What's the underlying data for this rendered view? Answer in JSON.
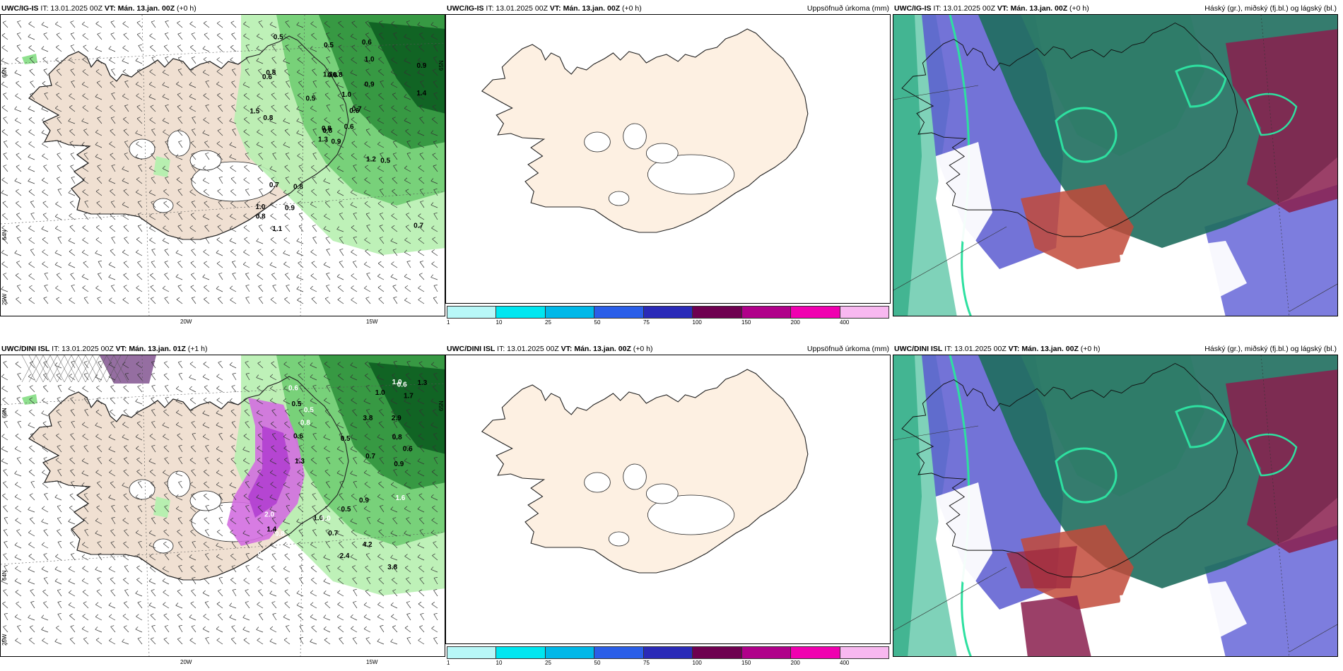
{
  "panels": [
    {
      "model": "UWC/IG-IS",
      "it_label": "IT:",
      "it": "13.01.2025 00Z",
      "vt_label": "VT:",
      "vt": "Mán. 13.jan. 00Z",
      "lead": "(+0 h)",
      "right": ""
    },
    {
      "model": "UWC/IG-IS",
      "it_label": "IT:",
      "it": "13.01.2025 00Z",
      "vt_label": "VT:",
      "vt": "Mán. 13.jan. 00Z",
      "lead": "(+0 h)",
      "right": "Uppsöfnuð úrkoma (mm)"
    },
    {
      "model": "UWC/IG-IS",
      "it_label": "IT:",
      "it": "13.01.2025 00Z",
      "vt_label": "VT:",
      "vt": "Mán. 13.jan. 00Z",
      "lead": "(+0 h)",
      "right": "Háský (gr.), miðský (fj.bl.) og lágský (bl.)"
    },
    {
      "model": "UWC/DINI ISL",
      "it_label": "IT:",
      "it": "13.01.2025 00Z",
      "vt_label": "VT:",
      "vt": "Mán. 13.jan. 01Z",
      "lead": "(+1 h)",
      "right": ""
    },
    {
      "model": "UWC/DINI ISL",
      "it_label": "IT:",
      "it": "13.01.2025 00Z",
      "vt_label": "VT:",
      "vt": "Mán. 13.jan. 00Z",
      "lead": "(+0 h)",
      "right": "Uppsöfnuð úrkoma (mm)"
    },
    {
      "model": "UWC/DINI ISL",
      "it_label": "IT:",
      "it": "13.01.2025 00Z",
      "vt_label": "VT:",
      "vt": "Mán. 13.jan. 00Z",
      "lead": "(+0 h)",
      "right": "Háský (gr.), miðský (fj.bl.) og lágský (bl.)"
    }
  ],
  "axis_labels": {
    "lon_20w": "20W",
    "lon_15w": "15W",
    "lat_66n": "66N",
    "lat_64n": "64N",
    "lat_65n": "65N",
    "lat_25w": "25W"
  },
  "colorbar": {
    "labels": [
      "1",
      "10",
      "25",
      "50",
      "75",
      "100",
      "150",
      "200",
      "400"
    ],
    "colors": [
      "#b8f8f8",
      "#00e6f0",
      "#00b8e8",
      "#2a5ee8",
      "#2a2ab8",
      "#6e0050",
      "#b0008a",
      "#f000b0",
      "#f8b8f0"
    ]
  },
  "precip_labels_top": [
    "0.9",
    "0.6",
    "0.8",
    "1.0",
    "0.6",
    "0.8",
    "0.6",
    "0.8",
    "1.0",
    "0.6",
    "0.5",
    "0.7",
    "0.8",
    "0.9",
    "1.3",
    "0.9",
    "1.1",
    "1.3",
    "1.0",
    "0.7",
    "0.5",
    "0.8",
    "0.9",
    "0.6",
    "0.7",
    "0.5",
    "0.8",
    "0.5",
    "1.5",
    "1.2",
    "1.4",
    "0.8"
  ],
  "precip_labels_bottom": [
    "0.6",
    "0.5",
    "1.3",
    "1.6",
    "2.9",
    "2.4",
    "1.0",
    "3.8",
    "4.2",
    "2.0",
    "0.5",
    "3.8",
    "0.7",
    "1.0",
    "0.6",
    "0.5",
    "0.7",
    "0.9",
    "0.8",
    "1.0",
    "0.6",
    "0.6",
    "1.7",
    "1.4",
    "0.8",
    "0.7",
    "0.5",
    "1.0",
    "0.9",
    "0.8",
    "0.5",
    "1.3"
  ]
}
